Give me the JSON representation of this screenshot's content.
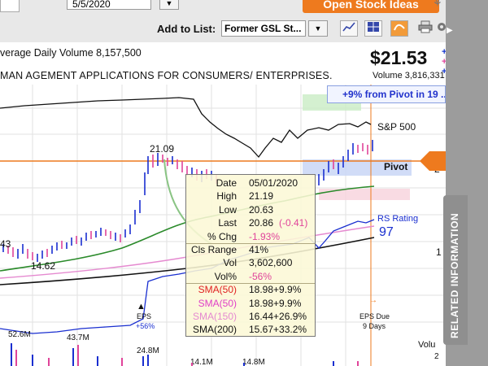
{
  "header": {
    "date_value": "5/5/2020",
    "open_ideas_label": "Open Stock Ideas",
    "add_to_list_label": "Add to List:",
    "list_value": "Former GSL St...",
    "avg_volume_text": "verage Daily Volume 8,157,500",
    "company_text": "MAN AGEMENT APPLICATIONS FOR CONSUMERS/ ENTERPRISES.",
    "price": "$21.53",
    "volume_text": "Volume 3,816,331",
    "pivot_note": "+9% from Pivot in 19 ..."
  },
  "chart": {
    "sp500_label": "S&P 500",
    "pivot_label": "Pivot",
    "rs_rating_label": "RS Rating",
    "rs_rating_value": "97",
    "high_label": "21.09",
    "low_label": "14.62",
    "left_label_43": "43",
    "eps_label": "EPS",
    "eps_change": "+56%",
    "eps_due_label": "EPS Due",
    "eps_due_days": "9 Days",
    "volume_label": "Volu",
    "vol_52_6": "52.6M",
    "vol_43_7": "43.7M",
    "vol_24_8": "24.8M",
    "vol_14_1": "14.1M",
    "vol_14_8": "14.8M",
    "axis_20": "2",
    "axis_1": "1",
    "axis_bottom": "2",
    "accent_orange": "#ee7a1e",
    "price_blue": "#1a2fd0",
    "price_pink": "#e0449a"
  },
  "tooltip": [
    {
      "label": "Date",
      "value": "05/01/2020",
      "label_color": "#111111",
      "value_color": "#111111"
    },
    {
      "label": "High",
      "value": "21.19",
      "label_color": "#111111",
      "value_color": "#111111"
    },
    {
      "label": "Low",
      "value": "20.63",
      "label_color": "#111111",
      "value_color": "#111111"
    },
    {
      "label": "Last",
      "value": "20.86",
      "change": "(-0.41)",
      "label_color": "#111111",
      "value_color": "#111111",
      "change_color": "#e0449a"
    },
    {
      "label": "% Chg",
      "value": "-1.93%",
      "label_color": "#111111",
      "value_color": "#e0449a"
    },
    {
      "label": "Cls Range",
      "value": "41%",
      "label_color": "#111111",
      "value_color": "#111111"
    },
    {
      "label": "Vol",
      "value": "3,602,600",
      "label_color": "#111111",
      "value_color": "#111111"
    },
    {
      "label": "Vol%",
      "value": "-56%",
      "label_color": "#111111",
      "value_color": "#e0449a"
    },
    {
      "label": "SMA(50)",
      "value": "18.98+9.9%",
      "label_color": "#e02020",
      "value_color": "#111111"
    },
    {
      "label": "SMA(50)",
      "value": "18.98+9.9%",
      "label_color": "#e040c8",
      "value_color": "#111111"
    },
    {
      "label": "SMA(150)",
      "value": "16.44+26.9%",
      "label_color": "#e58ad0",
      "value_color": "#111111"
    },
    {
      "label": "SMA(200)",
      "value": "15.67+33.2%",
      "label_color": "#111111",
      "value_color": "#111111"
    }
  ],
  "side_panel": {
    "label": "RELATED INFORMATION"
  },
  "icons": [
    "chevron-down-icon",
    "line-chart-icon",
    "grid-icon",
    "orange-chart-icon",
    "print-icon",
    "gear-icon",
    "bell-icon"
  ]
}
